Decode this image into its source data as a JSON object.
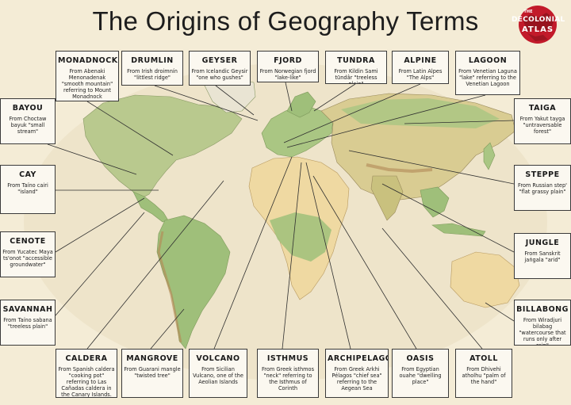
{
  "title": "The Origins of Geography Terms",
  "logo": {
    "small": "THE",
    "line1": "DECOLONIAL",
    "line2": "ATLAS",
    "color": "#c21a2a"
  },
  "colors": {
    "ocean": "#f4ecd6",
    "land_green": "#9fbf7a",
    "land_tan": "#e3c98c",
    "land_desert": "#efd9a2",
    "mountains": "#b48e5a",
    "box_bg": "#fbf8f0",
    "line": "#3a3a3a"
  },
  "terms": [
    {
      "id": "monadnock",
      "word": "MONADNOCK",
      "def": "From Abenaki Menonadenak \"smooth mountain\" referring to Mount Monadnock"
    },
    {
      "id": "drumlin",
      "word": "DRUMLIN",
      "def": "From Irish droimnín \"littlest ridge\""
    },
    {
      "id": "geyser",
      "word": "GEYSER",
      "def": "From Icelandic Geysir \"one who gushes\""
    },
    {
      "id": "fjord",
      "word": "FJORD",
      "def": "From Norwegian fjord \"lake-like\""
    },
    {
      "id": "tundra",
      "word": "TUNDRA",
      "def": "From Kildin Sami tūndâr \"treeless plain\""
    },
    {
      "id": "alpine",
      "word": "ALPINE",
      "def": "From Latin Alpes \"The Alps\""
    },
    {
      "id": "lagoon",
      "word": "LAGOON",
      "def": "From Venetian Laguna \"lake\" referring to the Venetian Lagoon"
    },
    {
      "id": "bayou",
      "word": "BAYOU",
      "def": "From Choctaw bayuk \"small stream\""
    },
    {
      "id": "taiga",
      "word": "TAIGA",
      "def": "From Yakut tayga \"untraversable forest\""
    },
    {
      "id": "cay",
      "word": "CAY",
      "def": "From Taíno cairi \"island\""
    },
    {
      "id": "steppe",
      "word": "STEPPE",
      "def": "From Russian step' \"flat grassy plain\""
    },
    {
      "id": "cenote",
      "word": "CENOTE",
      "def": "From Yucatec Maya ts'onot \"accessible groundwater\""
    },
    {
      "id": "jungle",
      "word": "JUNGLE",
      "def": "From Sanskrit jaṅgala \"arid\""
    },
    {
      "id": "savannah",
      "word": "SAVANNAH",
      "def": "From Taíno sabana \"treeless plain\""
    },
    {
      "id": "billabong",
      "word": "BILLABONG",
      "def": "From Wiradjuri bilabag \"watercourse that runs only after rain\""
    },
    {
      "id": "caldera",
      "word": "CALDERA",
      "def": "From Spanish caldera \"cooking pot\" referring to Las Cañadas caldera in the Canary Islands."
    },
    {
      "id": "mangrove",
      "word": "MANGROVE",
      "def": "From Guarani mangle \"twisted tree\""
    },
    {
      "id": "volcano",
      "word": "VOLCANO",
      "def": "From Sicilian Vulcano, one of the Aeolian Islands"
    },
    {
      "id": "isthmus",
      "word": "ISTHMUS",
      "def": "From Greek isthmos \"neck\" referring to the Isthmus of Corinth"
    },
    {
      "id": "archipelago",
      "word": "ARCHIPELAGO",
      "def": "From Greek Arkhi Pélagos \"chief sea\" referring to the Aegean Sea"
    },
    {
      "id": "oasis",
      "word": "OASIS",
      "def": "From Egyptian ouahe \"dwelling place\""
    },
    {
      "id": "atoll",
      "word": "ATOLL",
      "def": "From Dhivehi atholhu \"palm of the hand\""
    }
  ]
}
